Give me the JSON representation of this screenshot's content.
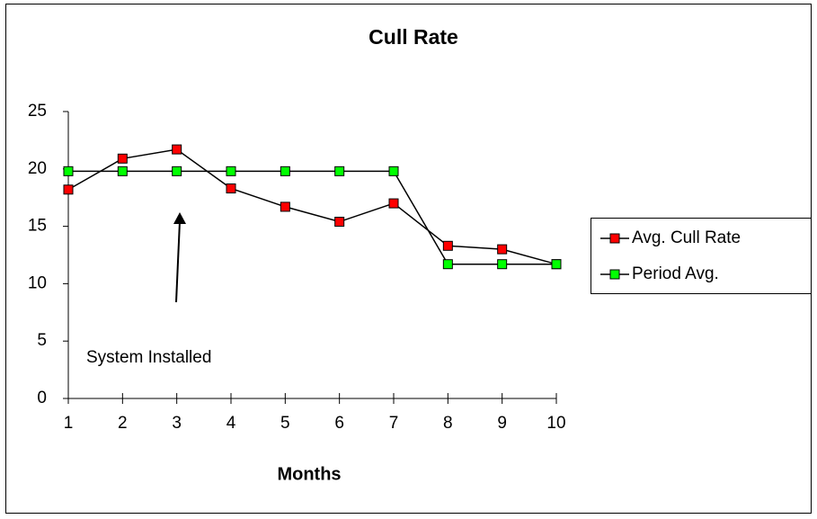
{
  "chart_data": {
    "type": "line",
    "title": "Cull Rate",
    "x_label": "Months",
    "x": [
      1,
      2,
      3,
      4,
      5,
      6,
      7,
      8,
      9,
      10
    ],
    "xlim": [
      1,
      10
    ],
    "xticks": [
      1,
      2,
      3,
      4,
      5,
      6,
      7,
      8,
      9,
      10
    ],
    "ylim": [
      0,
      25
    ],
    "yticks": [
      0,
      5,
      10,
      15,
      20,
      25
    ],
    "annotation": "System Installed",
    "legend": "right",
    "series": [
      {
        "name": "Avg. Cull Rate",
        "color": "#ff0000",
        "values": [
          18.2,
          20.9,
          21.7,
          18.3,
          16.7,
          15.4,
          17.0,
          13.3,
          13.0,
          11.7
        ]
      },
      {
        "name": "Period Avg.",
        "color": "#00ff00",
        "values": [
          19.8,
          19.8,
          19.8,
          19.8,
          19.8,
          19.8,
          19.8,
          11.7,
          11.7,
          11.7
        ]
      }
    ]
  }
}
